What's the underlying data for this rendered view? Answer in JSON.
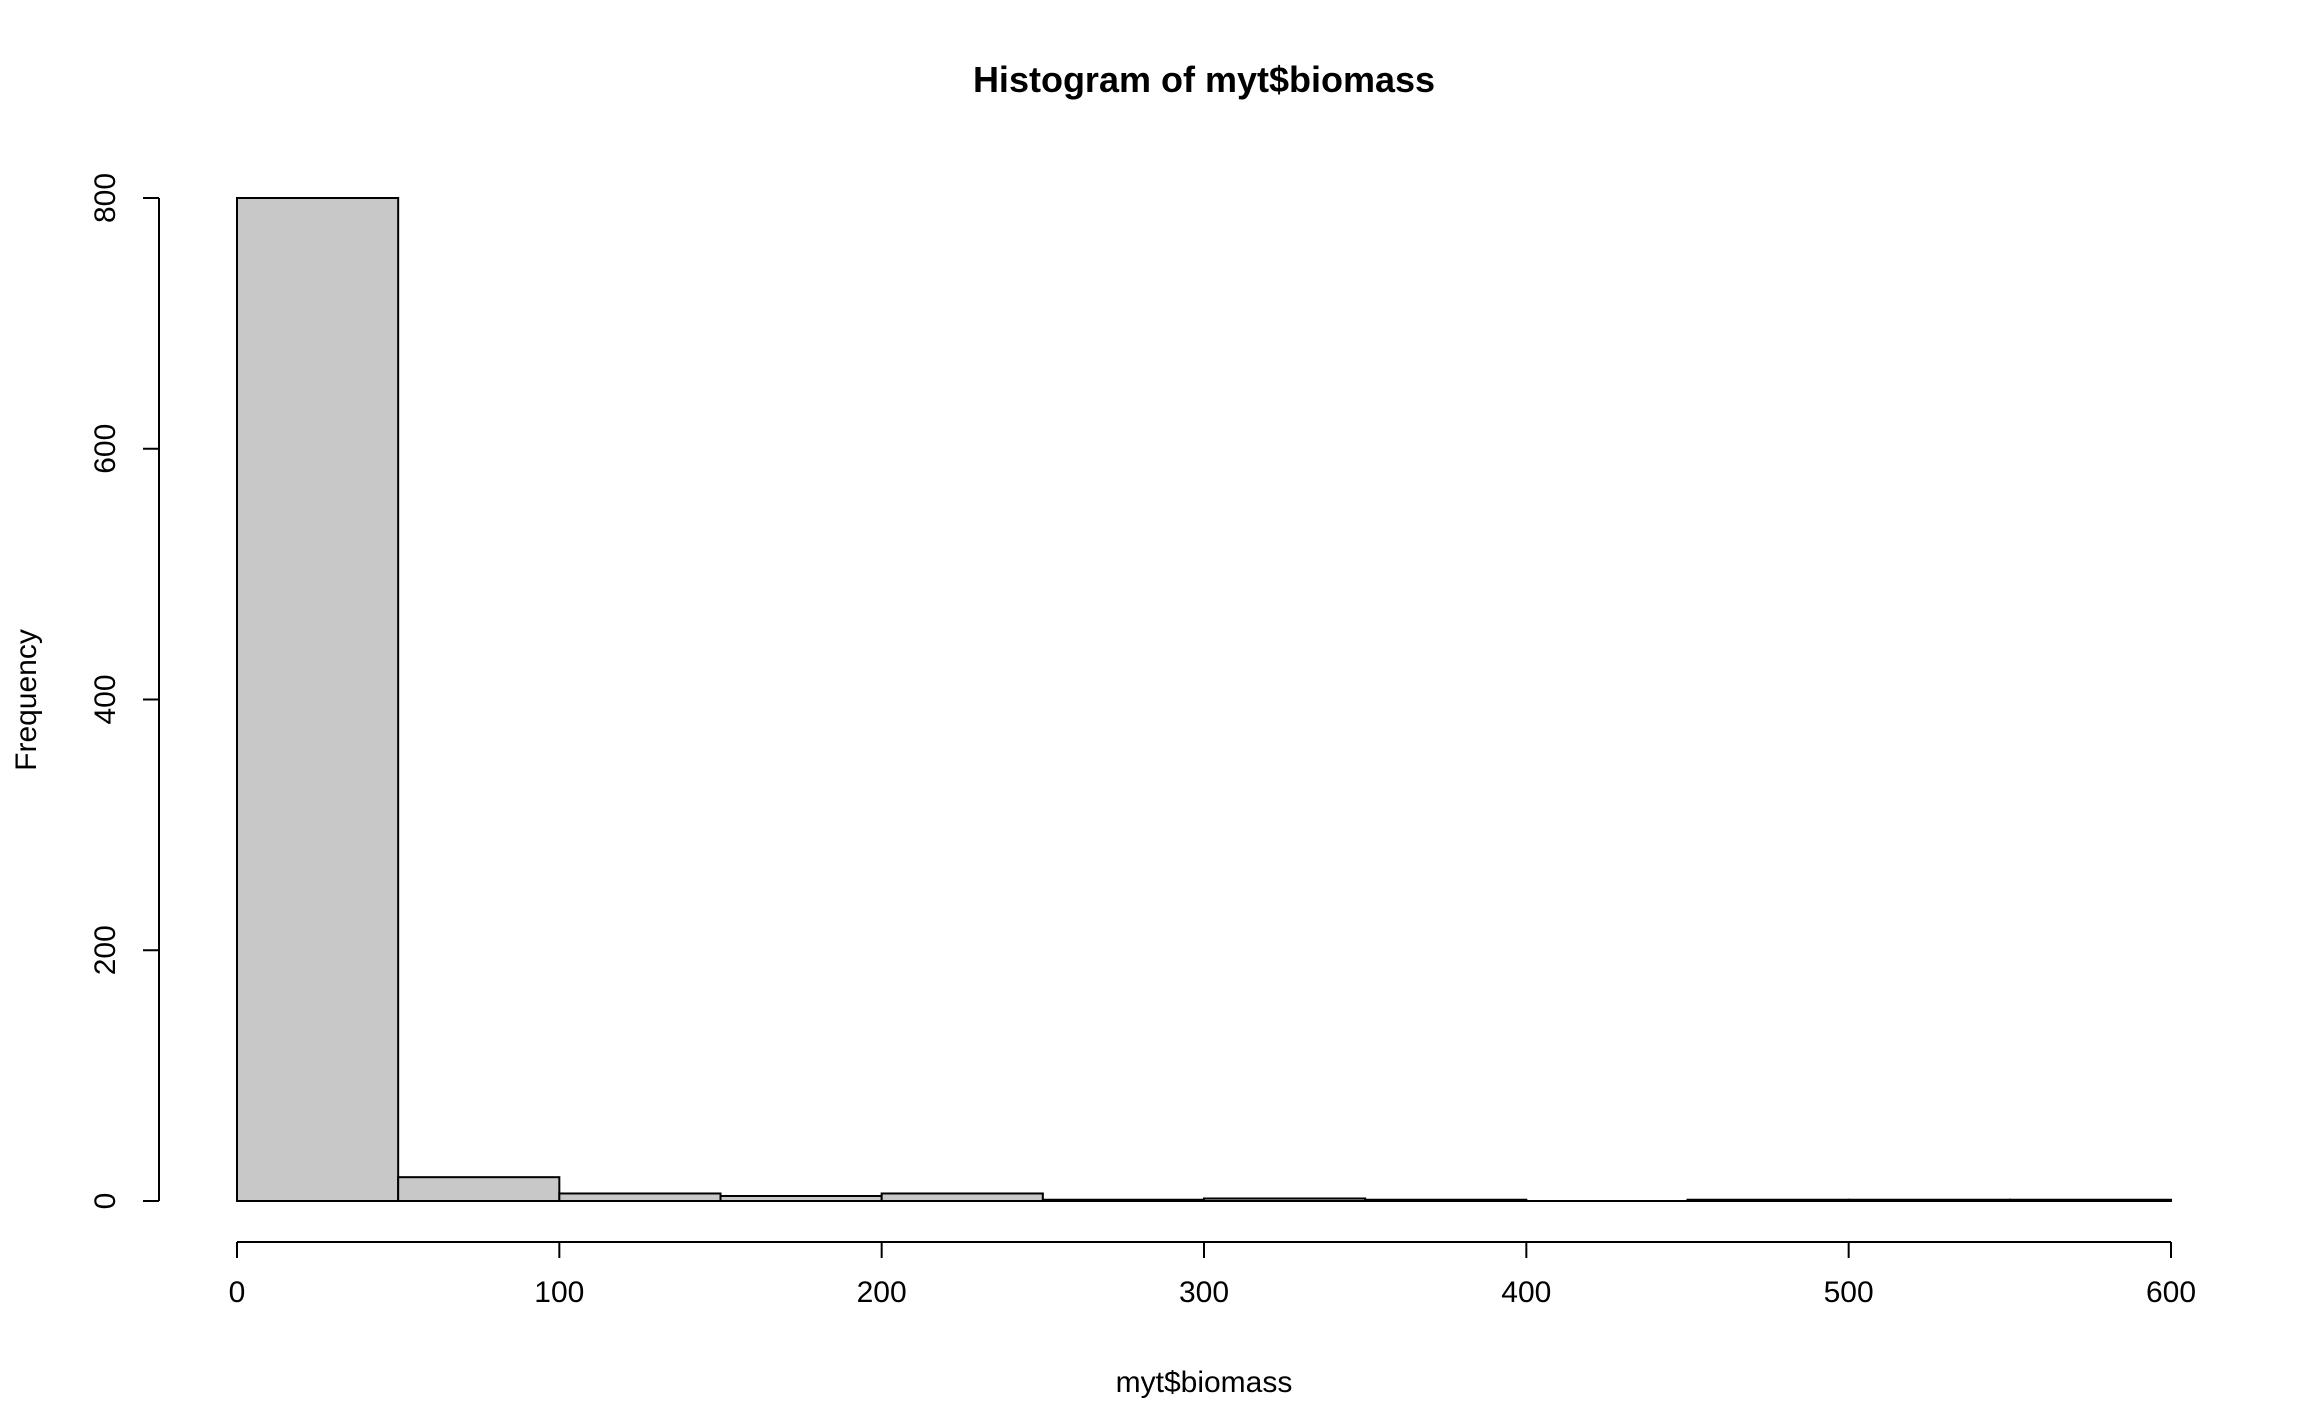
{
  "chart_data": {
    "type": "bar",
    "title": "Histogram of myt$biomass",
    "xlabel": "myt$biomass",
    "ylabel": "Frequency",
    "bin_edges": [
      0,
      50,
      100,
      150,
      200,
      250,
      300,
      350,
      400,
      450,
      500,
      550,
      600
    ],
    "values": [
      800,
      19,
      6,
      4,
      6,
      1,
      2,
      1,
      0,
      1,
      1,
      1
    ],
    "xlim": [
      0,
      600
    ],
    "ylim": [
      0,
      800
    ],
    "x_ticks": [
      0,
      100,
      200,
      300,
      400,
      500,
      600
    ],
    "y_ticks": [
      0,
      200,
      400,
      600,
      800
    ],
    "x_tick_labels": [
      "0",
      "100",
      "200",
      "300",
      "400",
      "500",
      "600"
    ],
    "y_tick_labels": [
      "0",
      "200",
      "400",
      "600",
      "800"
    ],
    "grid": false,
    "bar_color": "#c8c8c8",
    "edge_color": "#000000"
  }
}
